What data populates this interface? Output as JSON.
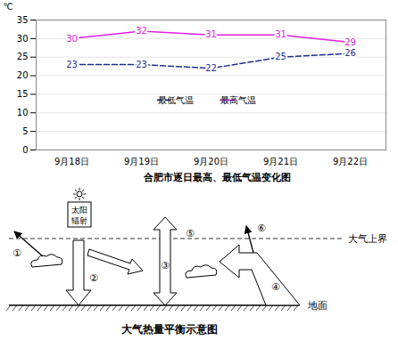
{
  "chart_data": {
    "type": "line",
    "title": "合肥市逐日最高、最低气温变化图",
    "y_label": "℃",
    "categories": [
      "9月18日",
      "9月19日",
      "9月20日",
      "9月21日",
      "9月22日"
    ],
    "series": [
      {
        "name": "最低气温",
        "color": "#1f2f8f",
        "line_style": "dashed",
        "values": [
          23,
          23,
          22,
          25,
          26
        ]
      },
      {
        "name": "最高气温",
        "color": "#e020e0",
        "line_style": "solid",
        "values": [
          30,
          32,
          31,
          31,
          29
        ]
      }
    ],
    "ylim": [
      0,
      35
    ],
    "yticks": [
      0,
      5,
      10,
      15,
      20,
      25,
      30,
      35
    ],
    "grid": true,
    "legend": "center",
    "data_labels": true
  },
  "diagram": {
    "title": "大气热量平衡示意图",
    "sun_label": [
      "太阳",
      "辐射"
    ],
    "top_label": "大气上界",
    "ground_label": "地面",
    "arrow_labels": [
      "①",
      "②",
      "③",
      "④",
      "⑤",
      "⑥"
    ]
  }
}
